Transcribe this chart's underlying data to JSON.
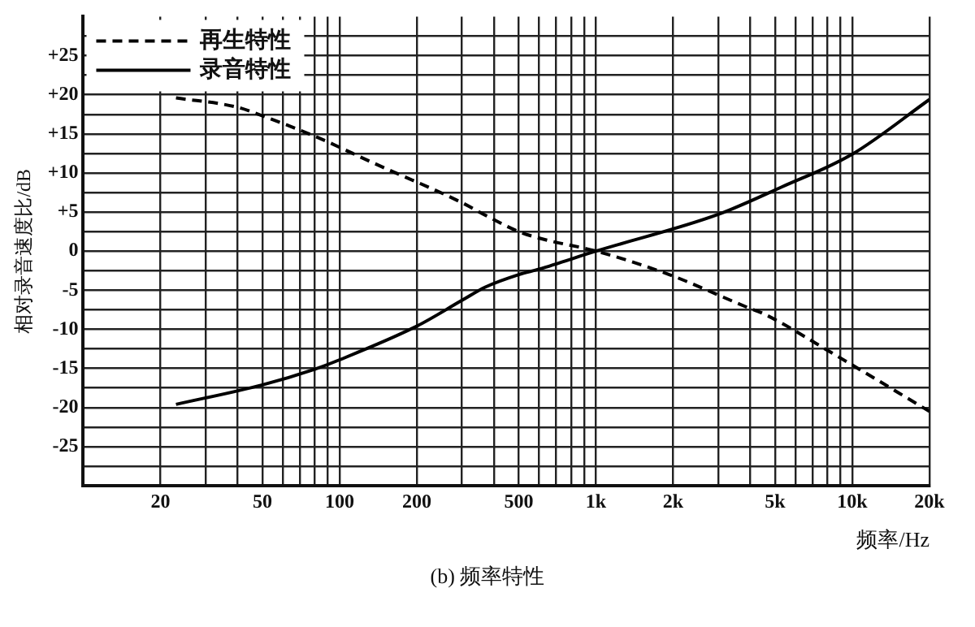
{
  "chart_data": {
    "type": "line",
    "xlabel": "频率/Hz",
    "ylabel": "相对录音速度比/dB",
    "annotations": [
      "(b) 频率特性"
    ],
    "log": "x",
    "grid": true,
    "legend": "top left",
    "marker": "none",
    "xlim": [
      10,
      20000
    ],
    "xticks": [
      20,
      {
        "value": 30,
        "label": null
      },
      {
        "value": 40,
        "label": null
      },
      50,
      {
        "value": 60,
        "label": null
      },
      {
        "value": 70,
        "label": null
      },
      {
        "value": 80,
        "label": null
      },
      {
        "value": 90,
        "label": null
      },
      100,
      200,
      {
        "value": 300,
        "label": null
      },
      {
        "value": 400,
        "label": null
      },
      500,
      {
        "value": 600,
        "label": null
      },
      {
        "value": 700,
        "label": null
      },
      {
        "value": 800,
        "label": null
      },
      {
        "value": 900,
        "label": null
      },
      {
        "value": 1000,
        "label": "1k"
      },
      {
        "value": 2000,
        "label": "2k"
      },
      {
        "value": 3000,
        "label": null
      },
      {
        "value": 4000,
        "label": null
      },
      {
        "value": 5000,
        "label": "5k"
      },
      {
        "value": 6000,
        "label": null
      },
      {
        "value": 7000,
        "label": null
      },
      {
        "value": 8000,
        "label": null
      },
      {
        "value": 9000,
        "label": null
      },
      {
        "value": 10000,
        "label": "10k"
      },
      {
        "value": 20000,
        "label": "20k"
      }
    ],
    "ylim": [
      -30,
      30
    ],
    "yticks": [
      {
        "value": 27.5,
        "label": null
      },
      {
        "value": 25,
        "label": "+25"
      },
      {
        "value": 22.5,
        "label": null
      },
      {
        "value": 20,
        "label": "+20"
      },
      {
        "value": 17.5,
        "label": null
      },
      {
        "value": 15,
        "label": "+15"
      },
      {
        "value": 12.5,
        "label": null
      },
      {
        "value": 10,
        "label": "+10"
      },
      {
        "value": 7.5,
        "label": null
      },
      {
        "value": 5,
        "label": "+5"
      },
      {
        "value": 2.5,
        "label": null
      },
      0,
      {
        "value": -2.5,
        "label": null
      },
      -5,
      {
        "value": -7.5,
        "label": null
      },
      -10,
      {
        "value": -12.5,
        "label": null
      },
      -15,
      {
        "value": -17.5,
        "label": null
      },
      -20,
      {
        "value": -22.5,
        "label": null
      },
      -25,
      {
        "value": -27.5,
        "label": null
      }
    ],
    "series": [
      {
        "name": "再生特性",
        "color": "#000000",
        "line_style": "dashed",
        "x": [
          23,
          40,
          50,
          80,
          137,
          300,
          370,
          500,
          610,
          1000,
          1930,
          3900,
          4500,
          8600,
          20000
        ],
        "values": [
          19.6,
          18.4,
          17.3,
          14.7,
          11.2,
          6.2,
          4.6,
          2.5,
          1.6,
          0,
          -3,
          -7.2,
          -8,
          -13.3,
          -20.5
        ]
      },
      {
        "name": "录音特性",
        "color": "#000000",
        "line_style": "solid",
        "x": [
          23,
          50,
          80,
          100,
          200,
          300,
          370,
          500,
          600,
          1000,
          3000,
          5300,
          10000,
          20000
        ],
        "values": [
          -19.6,
          -17.1,
          -15.1,
          -13.9,
          -9.6,
          -6.3,
          -4.6,
          -3,
          -2.3,
          0,
          4.7,
          8.2,
          12.4,
          19.4
        ]
      }
    ]
  }
}
